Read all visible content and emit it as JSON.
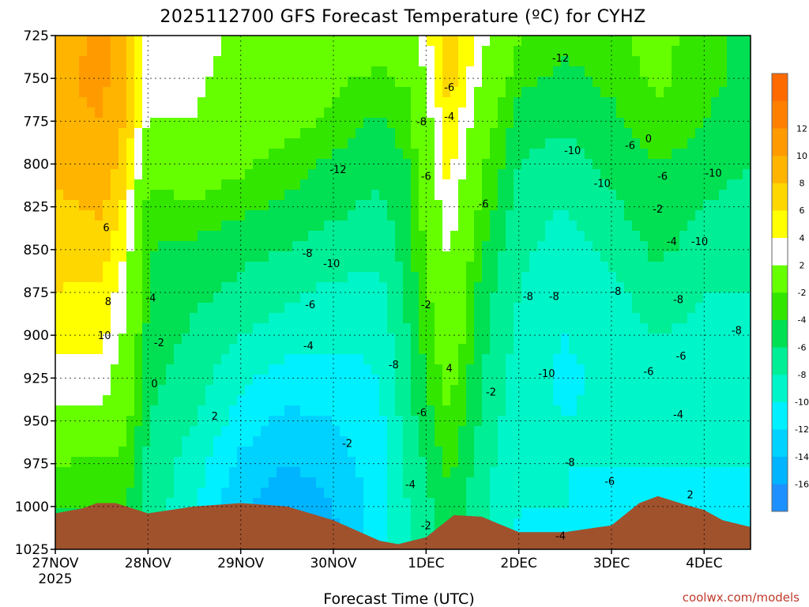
{
  "chart_data": {
    "type": "heatmap",
    "title": "2025112700 GFS Forecast Temperature (ºC) for CYHZ",
    "xlabel": "Forecast Time (UTC)",
    "ylabel": "",
    "credit": "coolwx.com/models",
    "x_unit": "days since 2025-11-27 00Z",
    "xlim": [
      0,
      7.5
    ],
    "x_ticks": [
      {
        "value": 0,
        "label": "27NOV",
        "sublabel": "2025"
      },
      {
        "value": 1,
        "label": "28NOV",
        "sublabel": ""
      },
      {
        "value": 2,
        "label": "29NOV",
        "sublabel": ""
      },
      {
        "value": 3,
        "label": "30NOV",
        "sublabel": ""
      },
      {
        "value": 4,
        "label": "1DEC",
        "sublabel": ""
      },
      {
        "value": 5,
        "label": "2DEC",
        "sublabel": ""
      },
      {
        "value": 6,
        "label": "3DEC",
        "sublabel": ""
      },
      {
        "value": 7,
        "label": "4DEC",
        "sublabel": ""
      }
    ],
    "y_unit": "hPa",
    "ylim": [
      1025,
      725
    ],
    "y_ticks": [
      725,
      750,
      775,
      800,
      825,
      850,
      875,
      900,
      925,
      950,
      975,
      1000,
      1025
    ],
    "colorbar": {
      "levels": [
        -18,
        -16,
        -14,
        -12,
        -10,
        -8,
        -6,
        -4,
        -2,
        2,
        4,
        6,
        8,
        10,
        12,
        14
      ],
      "tick_labels": [
        "-16",
        "-14",
        "-12",
        "-10",
        "-8",
        "-6",
        "-4",
        "-2",
        "2",
        "4",
        "6",
        "8",
        "10",
        "12"
      ],
      "colors": [
        "#1e90ff",
        "#00b4ff",
        "#00d2ff",
        "#00f0ff",
        "#00f5c8",
        "#00ee95",
        "#00e052",
        "#33e600",
        "#66ff00",
        "#ffffff",
        "#ffff00",
        "#ffd700",
        "#ffb400",
        "#ff9b00",
        "#ff8000",
        "#ff6a00"
      ]
    },
    "columns": [
      {
        "x": 0.0,
        "t": [
          9.0,
          9.5,
          9.5,
          8.5,
          7.5,
          6.5,
          6.0,
          4.5,
          3.5,
          1.5,
          -2.0,
          -4.0,
          -4.0
        ]
      },
      {
        "x": 0.5,
        "t": [
          10.5,
          10.5,
          10.0,
          9.5,
          8.5,
          7.0,
          5.5,
          4.5,
          3.5,
          1.0,
          -2.5,
          -4.0,
          -4.5
        ]
      },
      {
        "x": 0.75,
        "t": [
          9.0,
          9.0,
          8.0,
          7.0,
          5.5,
          4.0,
          3.0,
          1.5,
          0.0,
          -1.0,
          -2.5,
          -4.0,
          -4.5
        ]
      },
      {
        "x": 1.0,
        "t": [
          2.0,
          3.0,
          2.0,
          -0.5,
          -3.0,
          -4.0,
          -4.5,
          -4.5,
          -5.5,
          -6.0,
          -6.5,
          -6.5,
          -7.0
        ]
      },
      {
        "x": 1.5,
        "t": [
          3.0,
          2.5,
          2.0,
          0.0,
          -2.5,
          -4.5,
          -5.5,
          -6.5,
          -7.0,
          -8.0,
          -9.0,
          -10.0,
          -11.0
        ]
      },
      {
        "x": 2.0,
        "t": [
          1.5,
          1.0,
          0.0,
          -1.5,
          -3.5,
          -5.5,
          -6.5,
          -8.0,
          -9.5,
          -11.0,
          -12.5,
          -13.5,
          -15.0
        ]
      },
      {
        "x": 2.5,
        "t": [
          0.5,
          0.0,
          -1.0,
          -3.0,
          -4.5,
          -6.0,
          -7.5,
          -9.0,
          -11.0,
          -12.5,
          -14.0,
          -16.0,
          -17.0
        ]
      },
      {
        "x": 3.0,
        "t": [
          0.0,
          -1.5,
          -2.5,
          -4.5,
          -5.5,
          -7.0,
          -8.5,
          -9.5,
          -11.0,
          -12.0,
          -13.0,
          -14.0,
          -14.5
        ]
      },
      {
        "x": 3.5,
        "t": [
          -0.5,
          -2.5,
          -4.5,
          -5.5,
          -6.5,
          -7.5,
          -8.5,
          -9.5,
          -10.0,
          -10.5,
          -11.0,
          -11.0,
          -11.0
        ]
      },
      {
        "x": 3.8,
        "t": [
          0.0,
          -1.5,
          -3.0,
          -4.0,
          -4.5,
          -5.0,
          -5.5,
          -6.0,
          -6.5,
          -7.0,
          -7.5,
          -8.0,
          -8.0
        ]
      },
      {
        "x": 4.25,
        "t": [
          8.0,
          7.0,
          6.0,
          5.0,
          4.0,
          2.5,
          1.0,
          0.5,
          -1.0,
          -2.0,
          -3.5,
          -4.5,
          -5.5
        ]
      },
      {
        "x": 4.6,
        "t": [
          3.0,
          1.5,
          0.0,
          -1.5,
          -2.5,
          -4.0,
          -5.0,
          -5.5,
          -6.0,
          -6.5,
          -7.0,
          -7.5,
          -8.0
        ]
      },
      {
        "x": 5.0,
        "t": [
          -1.5,
          -3.5,
          -5.0,
          -6.0,
          -7.0,
          -7.5,
          -8.0,
          -8.5,
          -9.0,
          -9.5,
          -10.0,
          -10.0,
          -10.5
        ]
      },
      {
        "x": 5.5,
        "t": [
          -3.5,
          -4.5,
          -5.5,
          -7.0,
          -8.0,
          -9.0,
          -9.5,
          -10.0,
          -10.5,
          -10.0,
          -10.0,
          -10.0,
          -11.0
        ]
      },
      {
        "x": 6.0,
        "t": [
          -2.5,
          -3.5,
          -4.5,
          -5.5,
          -6.5,
          -7.5,
          -8.5,
          -9.0,
          -9.5,
          -9.5,
          -10.0,
          -10.5,
          -11.0
        ]
      },
      {
        "x": 6.5,
        "t": [
          -1.0,
          -1.5,
          -2.5,
          -4.0,
          -4.5,
          -5.5,
          -7.0,
          -8.0,
          -9.0,
          -9.5,
          -10.0,
          -10.5,
          -10.5
        ]
      },
      {
        "x": 7.0,
        "t": [
          -3.5,
          -3.5,
          -4.0,
          -5.0,
          -6.0,
          -7.0,
          -8.0,
          -8.5,
          -9.0,
          -9.5,
          -10.0,
          -10.5,
          -11.0
        ]
      },
      {
        "x": 7.5,
        "t": [
          -4.5,
          -4.5,
          -5.0,
          -6.0,
          -7.0,
          -7.5,
          -8.0,
          -8.5,
          -9.0,
          -9.5,
          -10.0,
          -10.5,
          -11.0
        ]
      }
    ],
    "terrain_surface_hPa": [
      {
        "x": 0.0,
        "p": 1004
      },
      {
        "x": 0.3,
        "p": 1001
      },
      {
        "x": 0.45,
        "p": 998
      },
      {
        "x": 0.65,
        "p": 998
      },
      {
        "x": 1.0,
        "p": 1004
      },
      {
        "x": 1.5,
        "p": 1000
      },
      {
        "x": 2.0,
        "p": 998
      },
      {
        "x": 2.5,
        "p": 1000
      },
      {
        "x": 3.0,
        "p": 1008
      },
      {
        "x": 3.5,
        "p": 1020
      },
      {
        "x": 3.7,
        "p": 1022
      },
      {
        "x": 4.0,
        "p": 1018
      },
      {
        "x": 4.3,
        "p": 1005
      },
      {
        "x": 4.6,
        "p": 1006
      },
      {
        "x": 5.0,
        "p": 1015
      },
      {
        "x": 5.5,
        "p": 1015
      },
      {
        "x": 6.0,
        "p": 1011
      },
      {
        "x": 6.3,
        "p": 998
      },
      {
        "x": 6.5,
        "p": 994
      },
      {
        "x": 6.8,
        "p": 999
      },
      {
        "x": 7.0,
        "p": 1002
      },
      {
        "x": 7.2,
        "p": 1008
      },
      {
        "x": 7.5,
        "p": 1012
      }
    ],
    "contour_labels": [
      {
        "x": 0.55,
        "p": 837,
        "text": "6"
      },
      {
        "x": 0.57,
        "p": 880,
        "text": "8"
      },
      {
        "x": 0.53,
        "p": 900,
        "text": "10"
      },
      {
        "x": 1.03,
        "p": 878,
        "text": "-4"
      },
      {
        "x": 1.12,
        "p": 904,
        "text": "-2"
      },
      {
        "x": 1.07,
        "p": 928,
        "text": "0"
      },
      {
        "x": 1.72,
        "p": 947,
        "text": "2"
      },
      {
        "x": 2.72,
        "p": 852,
        "text": "-8"
      },
      {
        "x": 2.75,
        "p": 882,
        "text": "-6"
      },
      {
        "x": 2.73,
        "p": 906,
        "text": "-4"
      },
      {
        "x": 3.05,
        "p": 803,
        "text": "-12"
      },
      {
        "x": 2.98,
        "p": 858,
        "text": "-10"
      },
      {
        "x": 3.15,
        "p": 963,
        "text": "-2"
      },
      {
        "x": 3.65,
        "p": 917,
        "text": "-8"
      },
      {
        "x": 3.95,
        "p": 945,
        "text": "-6"
      },
      {
        "x": 3.83,
        "p": 987,
        "text": "-4"
      },
      {
        "x": 4.0,
        "p": 1011,
        "text": "-2"
      },
      {
        "x": 4.25,
        "p": 755,
        "text": "-6"
      },
      {
        "x": 3.95,
        "p": 775,
        "text": "-8"
      },
      {
        "x": 4.25,
        "p": 772,
        "text": "-4"
      },
      {
        "x": 4.0,
        "p": 807,
        "text": "-6"
      },
      {
        "x": 4.0,
        "p": 882,
        "text": "-2"
      },
      {
        "x": 4.25,
        "p": 919,
        "text": "4"
      },
      {
        "x": 4.62,
        "p": 823,
        "text": "-6"
      },
      {
        "x": 4.7,
        "p": 933,
        "text": "-2"
      },
      {
        "x": 5.1,
        "p": 877,
        "text": "-8"
      },
      {
        "x": 5.38,
        "p": 877,
        "text": "-8"
      },
      {
        "x": 5.3,
        "p": 922,
        "text": "-10"
      },
      {
        "x": 5.55,
        "p": 974,
        "text": "-8"
      },
      {
        "x": 5.58,
        "p": 792,
        "text": "-10"
      },
      {
        "x": 5.9,
        "p": 811,
        "text": "-10"
      },
      {
        "x": 5.45,
        "p": 738,
        "text": "-12"
      },
      {
        "x": 6.05,
        "p": 874,
        "text": "-8"
      },
      {
        "x": 5.98,
        "p": 985,
        "text": "-6"
      },
      {
        "x": 6.4,
        "p": 921,
        "text": "-6"
      },
      {
        "x": 6.2,
        "p": 789,
        "text": "-6"
      },
      {
        "x": 6.4,
        "p": 785,
        "text": "0"
      },
      {
        "x": 6.55,
        "p": 807,
        "text": "-6"
      },
      {
        "x": 6.65,
        "p": 845,
        "text": "-4"
      },
      {
        "x": 6.5,
        "p": 826,
        "text": "-2"
      },
      {
        "x": 6.72,
        "p": 879,
        "text": "-8"
      },
      {
        "x": 6.75,
        "p": 912,
        "text": "-6"
      },
      {
        "x": 6.72,
        "p": 946,
        "text": "-4"
      },
      {
        "x": 6.85,
        "p": 993,
        "text": "2"
      },
      {
        "x": 6.95,
        "p": 845,
        "text": "-10"
      },
      {
        "x": 7.1,
        "p": 805,
        "text": "-10"
      },
      {
        "x": 7.35,
        "p": 897,
        "text": "-8"
      },
      {
        "x": 5.45,
        "p": 1017,
        "text": "-4"
      }
    ]
  }
}
